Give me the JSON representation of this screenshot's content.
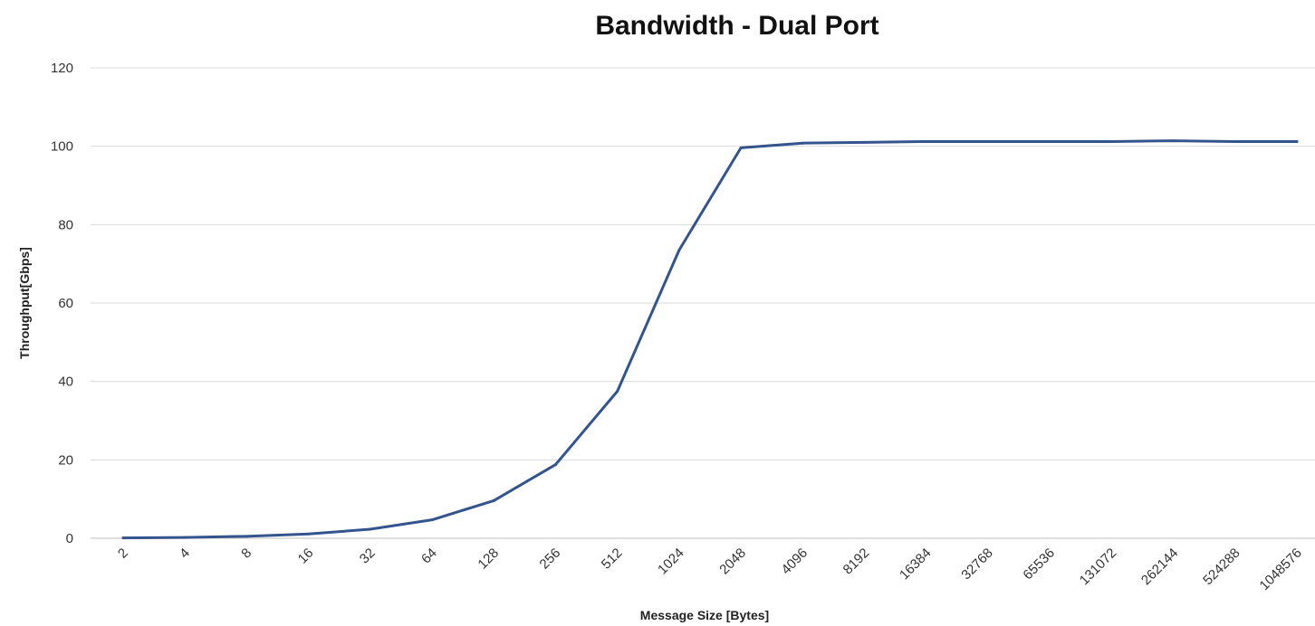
{
  "chart_data": {
    "type": "line",
    "title": "Bandwidth - Dual Port",
    "xlabel": "Message Size [Bytes]",
    "ylabel": "Throughput[Gbps]",
    "categories": [
      "2",
      "4",
      "8",
      "16",
      "32",
      "64",
      "128",
      "256",
      "512",
      "1024",
      "2048",
      "4096",
      "8192",
      "16384",
      "32768",
      "65536",
      "131072",
      "262144",
      "524288",
      "1048576"
    ],
    "series": [
      {
        "values": [
          0.1,
          0.2,
          0.5,
          1.1,
          2.3,
          4.7,
          9.6,
          18.8,
          37.5,
          73.5,
          99.6,
          100.8,
          101.0,
          101.2,
          101.2,
          101.2,
          101.2,
          101.4,
          101.2,
          101.2
        ],
        "color": "#34548e"
      }
    ],
    "ylim": [
      0,
      120
    ],
    "yticks": [
      0,
      20,
      40,
      60,
      80,
      100,
      120
    ],
    "grid": true,
    "legend": "none"
  }
}
